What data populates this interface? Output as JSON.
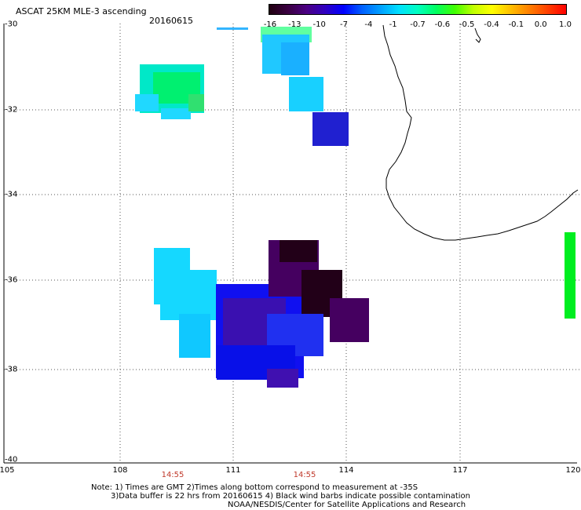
{
  "title": "ASCAT 25KM MLE-3 ascending",
  "date": "20160615",
  "colorbar": {
    "labels": [
      "-16",
      "-13",
      "-10",
      "-7",
      "-4",
      "-1",
      "-0.7",
      "-0.6",
      "-0.5",
      "-0.4",
      "-0.1",
      "0.0",
      "1.0"
    ],
    "colors": [
      "#200010",
      "#3a0040",
      "#4b0082",
      "#3000c0",
      "#0000ff",
      "#0060ff",
      "#00a0ff",
      "#00e0ff",
      "#00ffc0",
      "#00ff60",
      "#40ff00",
      "#c0ff00",
      "#ffff00",
      "#ffc000",
      "#ff8000",
      "#ff4000",
      "#ff0000"
    ]
  },
  "axes": {
    "lat_labels": [
      "-30",
      "-32",
      "-34",
      "-36",
      "-38",
      "-40"
    ],
    "lon_labels": [
      "105",
      "108",
      "111",
      "114",
      "117",
      "120"
    ]
  },
  "time_labels": [
    "14:55",
    "14:55"
  ],
  "notes": [
    "Note: 1) Times are GMT 2)Times along bottom correspond to measurement at -35S",
    "3)Data buffer is 22 hrs from 20160615 4) Black wind barbs indicate possible contamination",
    "NOAA/NESDIS/Center for Satellite Applications and Research"
  ],
  "data_patches": [
    {
      "name": "patch-nw",
      "color": "#00e8c8"
    },
    {
      "name": "patch-nw-green",
      "color": "#00f070"
    },
    {
      "name": "patch-nw-cyan",
      "color": "#20d8ff"
    },
    {
      "name": "patch-n",
      "color": "#20c8ff"
    },
    {
      "name": "patch-n-top",
      "color": "#60ffa0"
    },
    {
      "name": "patch-n-mid",
      "color": "#1ab0ff"
    },
    {
      "name": "patch-n-low",
      "color": "#18d0ff"
    },
    {
      "name": "patch-ne-dark",
      "color": "#2020d0"
    },
    {
      "name": "patch-sw-cyan",
      "color": "#15d8ff"
    },
    {
      "name": "patch-sw-cyan2",
      "color": "#10c8ff"
    },
    {
      "name": "patch-center-blue",
      "color": "#1010f0"
    },
    {
      "name": "patch-center-dark",
      "color": "#220018"
    },
    {
      "name": "patch-center-purple",
      "color": "#450060"
    },
    {
      "name": "patch-center-indigo",
      "color": "#3a10b0"
    },
    {
      "name": "patch-south-blue",
      "color": "#0810e8"
    },
    {
      "name": "patch-east-strip",
      "color": "#00ee20"
    }
  ]
}
